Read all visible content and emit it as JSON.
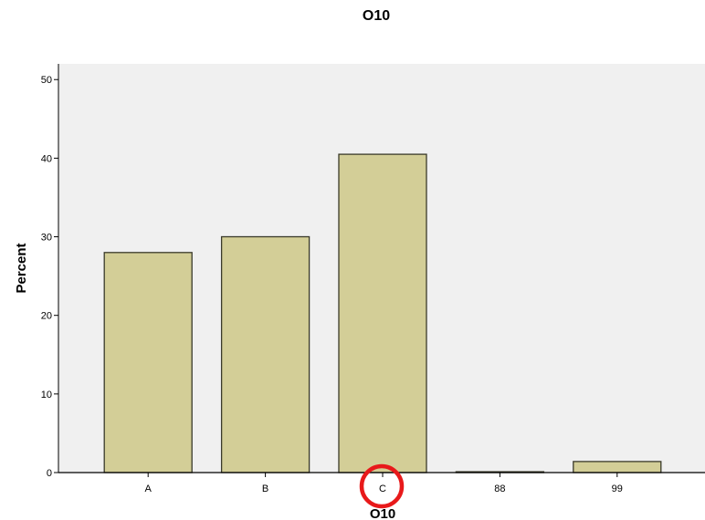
{
  "chart_data": {
    "type": "bar",
    "title": "O10",
    "xlabel": "O10",
    "ylabel": "Percent",
    "categories": [
      "A",
      "B",
      "C",
      "88",
      "99"
    ],
    "values": [
      28.0,
      30.0,
      40.5,
      0.1,
      1.4
    ],
    "ylim": [
      0,
      52
    ],
    "yticks": [
      0,
      10,
      20,
      30,
      40,
      50
    ],
    "grid": false,
    "legend": "none",
    "colors": {
      "plot_background": "#f0f0f0",
      "bar_fill": "#d3ce97",
      "bar_stroke": "#3a3a2a",
      "axis": "#000000",
      "highlight": "#e8191a"
    },
    "annotations": [
      {
        "type": "circle-highlight",
        "target_category": "C"
      }
    ]
  }
}
